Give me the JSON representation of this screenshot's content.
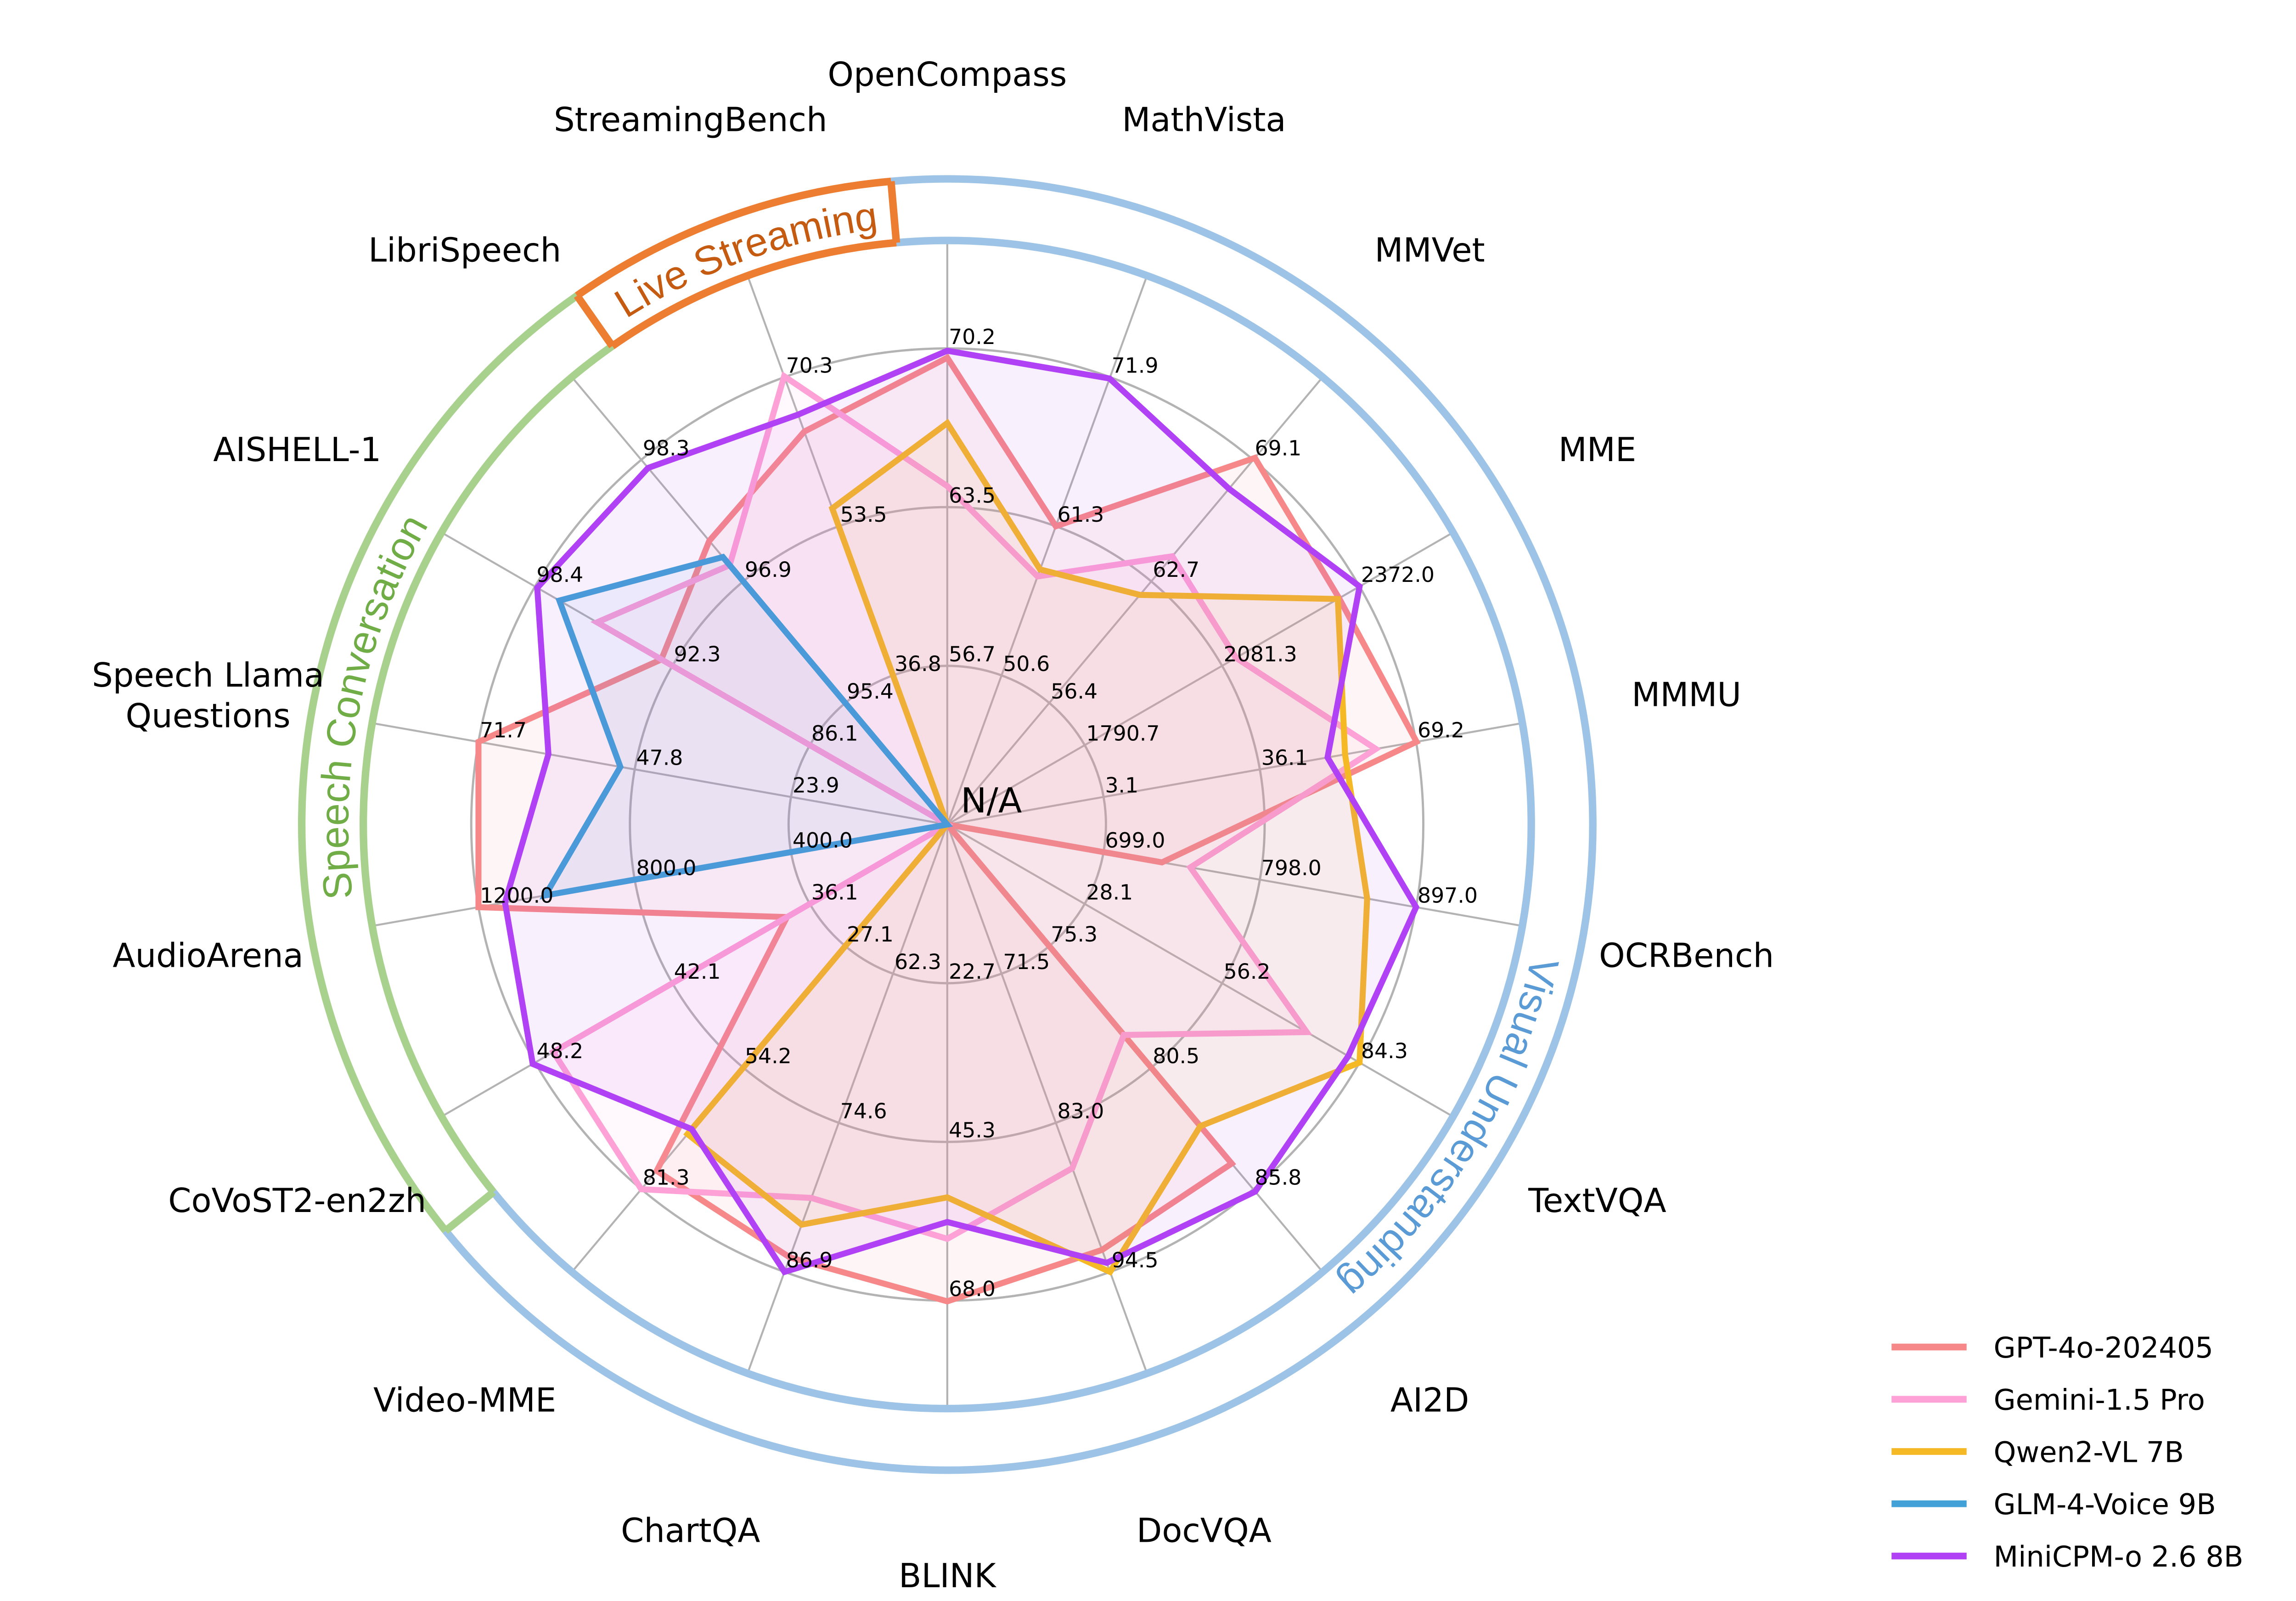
{
  "chart_data": {
    "type": "radar",
    "center_label": "N/A",
    "axes": [
      {
        "name": "OpenCompass",
        "ticks": [
          "56.7",
          "63.5",
          "70.2"
        ]
      },
      {
        "name": "MathVista",
        "ticks": [
          "50.6",
          "61.3",
          "71.9"
        ]
      },
      {
        "name": "MMVet",
        "ticks": [
          "56.4",
          "62.7",
          "69.1"
        ]
      },
      {
        "name": "MME",
        "ticks": [
          "1790.7",
          "2081.3",
          "2372.0"
        ]
      },
      {
        "name": "MMMU",
        "ticks": [
          "3.1",
          "36.1",
          "69.2"
        ]
      },
      {
        "name": "OCRBench",
        "ticks": [
          "699.0",
          "798.0",
          "897.0"
        ]
      },
      {
        "name": "TextVQA",
        "ticks": [
          "28.1",
          "56.2",
          "84.3"
        ]
      },
      {
        "name": "AI2D",
        "ticks": [
          "75.3",
          "80.5",
          "85.8"
        ]
      },
      {
        "name": "DocVQA",
        "ticks": [
          "71.5",
          "83.0",
          "94.5"
        ]
      },
      {
        "name": "BLINK",
        "ticks": [
          "22.7",
          "45.3",
          "68.0"
        ]
      },
      {
        "name": "ChartQA",
        "ticks": [
          "62.3",
          "74.6",
          "86.9"
        ]
      },
      {
        "name": "Video-MME",
        "ticks": [
          "27.1",
          "54.2",
          "81.3"
        ]
      },
      {
        "name": "CoVoST2-en2zh",
        "ticks": [
          "36.1",
          "42.1",
          "48.2"
        ]
      },
      {
        "name": "AudioArena",
        "ticks": [
          "400.0",
          "800.0",
          "1200.0"
        ]
      },
      {
        "name": "Speech Llama\nQuestions",
        "ticks": [
          "23.9",
          "47.8",
          "71.7"
        ]
      },
      {
        "name": "AISHELL-1",
        "ticks": [
          "86.1",
          "92.3",
          "98.4"
        ]
      },
      {
        "name": "LibriSpeech",
        "ticks": [
          "95.4",
          "96.9",
          "98.3"
        ]
      },
      {
        "name": "StreamingBench",
        "ticks": [
          "36.8",
          "53.5",
          "70.3"
        ]
      }
    ],
    "series": [
      {
        "name": "GPT-4o-202405",
        "color": "#F7888A",
        "values": [
          69.9,
          61.3,
          69.1,
          2328.7,
          69.2,
          736,
          null,
          84.6,
          92.8,
          68.0,
          85.7,
          77.2,
          37.1,
          1200,
          71.7,
          92.8,
          97.4,
          64.1
        ]
      },
      {
        "name": "Gemini-1.5 Pro",
        "color": "#FDA1D6",
        "values": [
          64.4,
          57.7,
          64.0,
          2110.6,
          60.6,
          754,
          73.5,
          79.1,
          86.5,
          59.1,
          80.8,
          81.3,
          47.3,
          null,
          null,
          95.7,
          97.1,
          70.3
        ]
      },
      {
        "name": "Qwen2-VL 7B",
        "color": "#F5B926",
        "values": [
          67.1,
          58.2,
          62.0,
          2326.0,
          54.1,
          866,
          84.3,
          83.0,
          94.5,
          53.2,
          83.0,
          69.0,
          null,
          null,
          null,
          null,
          null,
          55.5
        ]
      },
      {
        "name": "GLM-4-Voice 9B",
        "color": "#42A2D8",
        "values": [
          null,
          null,
          null,
          null,
          null,
          null,
          null,
          null,
          null,
          null,
          null,
          null,
          null,
          1029,
          50.0,
          97.4,
          97.2,
          null
        ]
      },
      {
        "name": "MiniCPM-o 2.6 8B",
        "color": "#B041F5",
        "values": [
          70.2,
          71.9,
          67.5,
          2372.0,
          50.4,
          897,
          82.0,
          85.8,
          93.8,
          56.7,
          86.9,
          67.9,
          48.2,
          1132,
          61.0,
          98.4,
          98.3,
          66.0
        ]
      }
    ],
    "bands": [
      {
        "label": "Visual Understanding",
        "color": "#9DC3E6",
        "text_color": "#5B9BD5"
      },
      {
        "label": "Speech Conversation",
        "color": "#A9D18E",
        "text_color": "#70AD47"
      },
      {
        "label": "Live Streaming",
        "color": "#ED7D31",
        "text_color": "#C55A11"
      }
    ],
    "grid": true,
    "legend_position": "bottom-right"
  }
}
